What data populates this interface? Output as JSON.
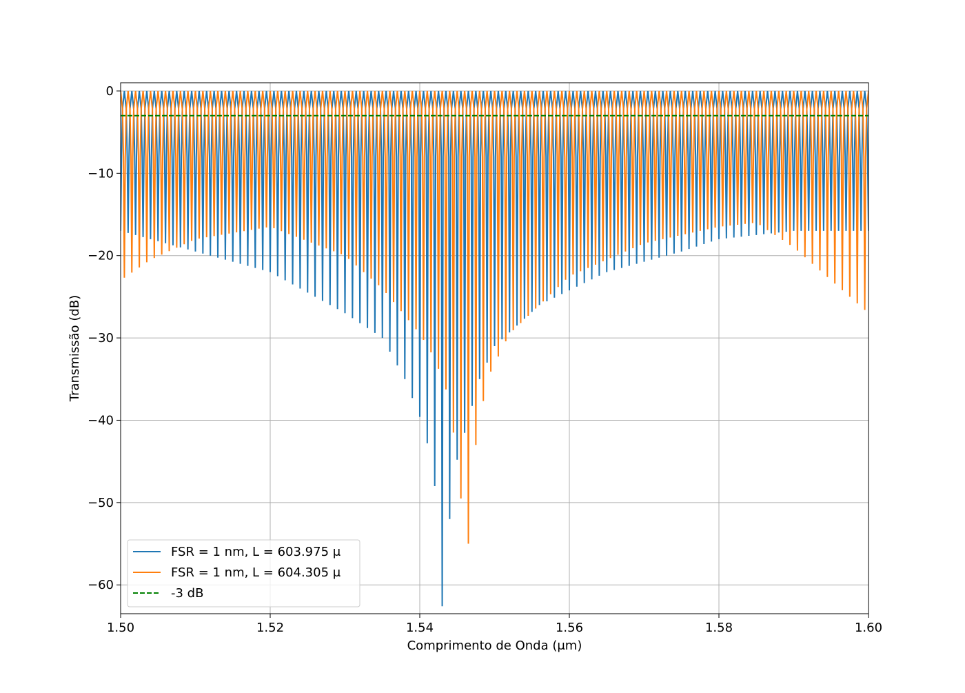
{
  "chart_data": {
    "type": "line",
    "title": "",
    "xlabel": "Comprimento de Onda (μm)",
    "ylabel": "Transmissão (dB)",
    "xlim": [
      1.5,
      1.6
    ],
    "ylim": [
      -63.5,
      1
    ],
    "xticks": [
      1.5,
      1.52,
      1.54,
      1.56,
      1.58,
      1.6
    ],
    "xtick_labels": [
      "1.50",
      "1.52",
      "1.54",
      "1.56",
      "1.58",
      "1.60"
    ],
    "yticks": [
      0,
      -10,
      -20,
      -30,
      -40,
      -50,
      -60
    ],
    "ytick_labels": [
      "0",
      "−10",
      "−20",
      "−30",
      "−40",
      "−50",
      "−60"
    ],
    "grid": true,
    "legend_position": "lower-left",
    "series": [
      {
        "name": "FSR = 1 nm, L = 603.975 μ",
        "color": "#1f77b4",
        "linestyle": "solid",
        "period_um": 0.001,
        "first_null_um": 1.5,
        "null_depth_envelope": [
          [
            1.5,
            -17
          ],
          [
            1.51,
            -19.5
          ],
          [
            1.52,
            -22
          ],
          [
            1.53,
            -27
          ],
          [
            1.535,
            -30
          ],
          [
            1.538,
            -35
          ],
          [
            1.54,
            -39.6
          ],
          [
            1.541,
            -42.8
          ],
          [
            1.542,
            -48
          ],
          [
            1.543,
            -62.6
          ],
          [
            1.544,
            -52
          ],
          [
            1.545,
            -44.8
          ],
          [
            1.548,
            -35
          ],
          [
            1.55,
            -31
          ],
          [
            1.556,
            -26
          ],
          [
            1.565,
            -22
          ],
          [
            1.575,
            -19.5
          ],
          [
            1.58,
            -18
          ],
          [
            1.59,
            -17
          ],
          [
            1.6,
            -17
          ]
        ],
        "max_db": 0
      },
      {
        "name": "FSR = 1 nm, L = 604.305 μ",
        "color": "#ff7f0e",
        "linestyle": "solid",
        "period_um": 0.001,
        "first_null_um": 1.5005,
        "null_depth_envelope": [
          [
            1.5,
            -23
          ],
          [
            1.504,
            -20.5
          ],
          [
            1.51,
            -18
          ],
          [
            1.52,
            -16.5
          ],
          [
            1.53,
            -20
          ],
          [
            1.535,
            -24
          ],
          [
            1.54,
            -29.5
          ],
          [
            1.542,
            -32.5
          ],
          [
            1.544,
            -37.5
          ],
          [
            1.5455,
            -49.5
          ],
          [
            1.5465,
            -55
          ],
          [
            1.5475,
            -43
          ],
          [
            1.549,
            -35
          ],
          [
            1.552,
            -29.5
          ],
          [
            1.56,
            -22.5
          ],
          [
            1.57,
            -18.5
          ],
          [
            1.58,
            -16.5
          ],
          [
            1.585,
            -16
          ],
          [
            1.59,
            -19
          ],
          [
            1.595,
            -23
          ],
          [
            1.6,
            -27
          ]
        ],
        "max_db": 0
      },
      {
        "name": "-3 dB",
        "color": "#008000",
        "linestyle": "dashed",
        "x": [
          1.5,
          1.6
        ],
        "y": [
          -3,
          -3
        ]
      }
    ]
  }
}
